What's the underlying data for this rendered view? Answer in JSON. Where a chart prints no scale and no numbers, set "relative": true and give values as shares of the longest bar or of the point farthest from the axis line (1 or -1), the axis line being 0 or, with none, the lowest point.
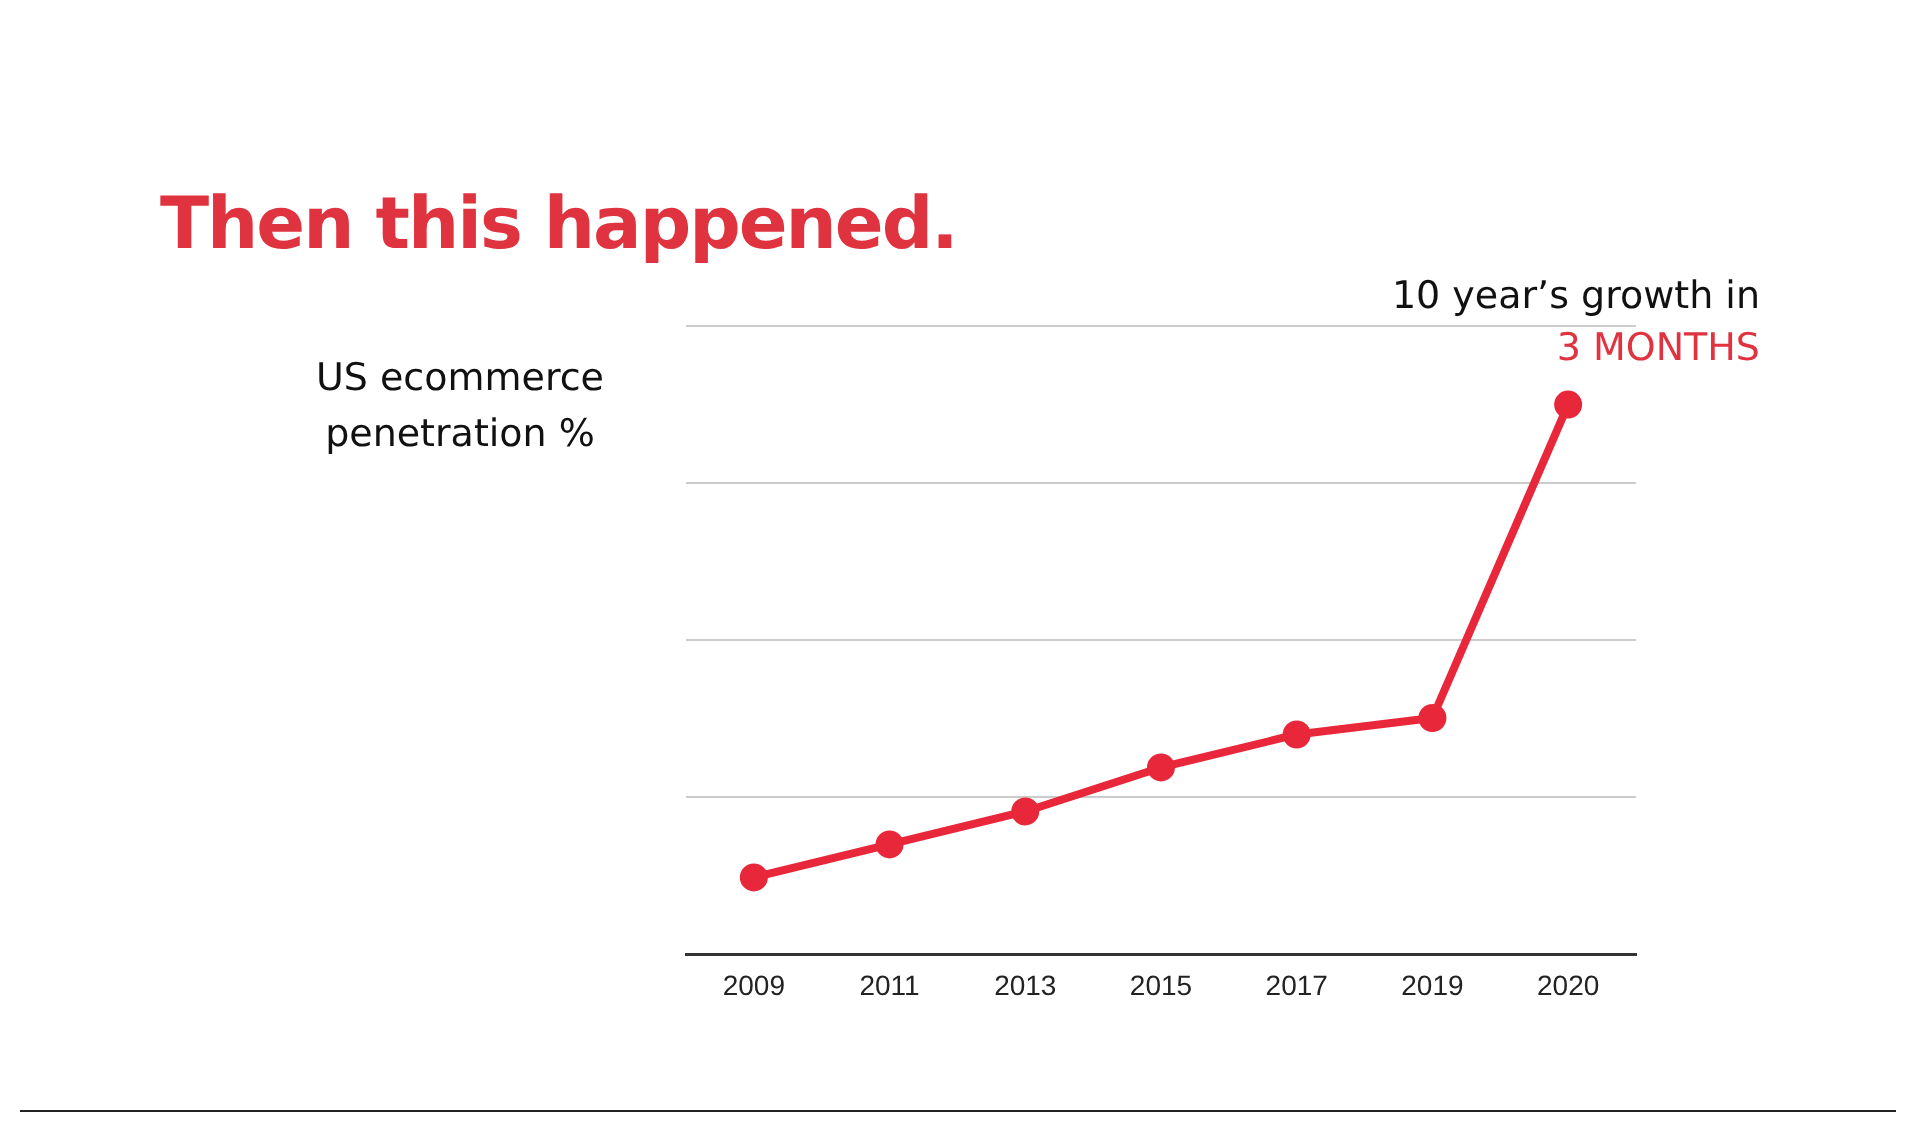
{
  "chart_data": {
    "type": "line",
    "title": "Then this happened.",
    "ylabel": "US ecommerce penetration %",
    "annotations": [
      "10 year’s growth in",
      "3 MONTHS"
    ],
    "categories": [
      "2009",
      "2011",
      "2013",
      "2015",
      "2017",
      "2019",
      "2020"
    ],
    "series": [
      {
        "color": "#e8283a",
        "values": [
          0.14,
          0.2,
          0.26,
          0.34,
          0.4,
          0.43,
          1
        ]
      }
    ],
    "relative": true,
    "grid": "y",
    "legend": false,
    "marker": "circle",
    "line_style": "solid"
  }
}
